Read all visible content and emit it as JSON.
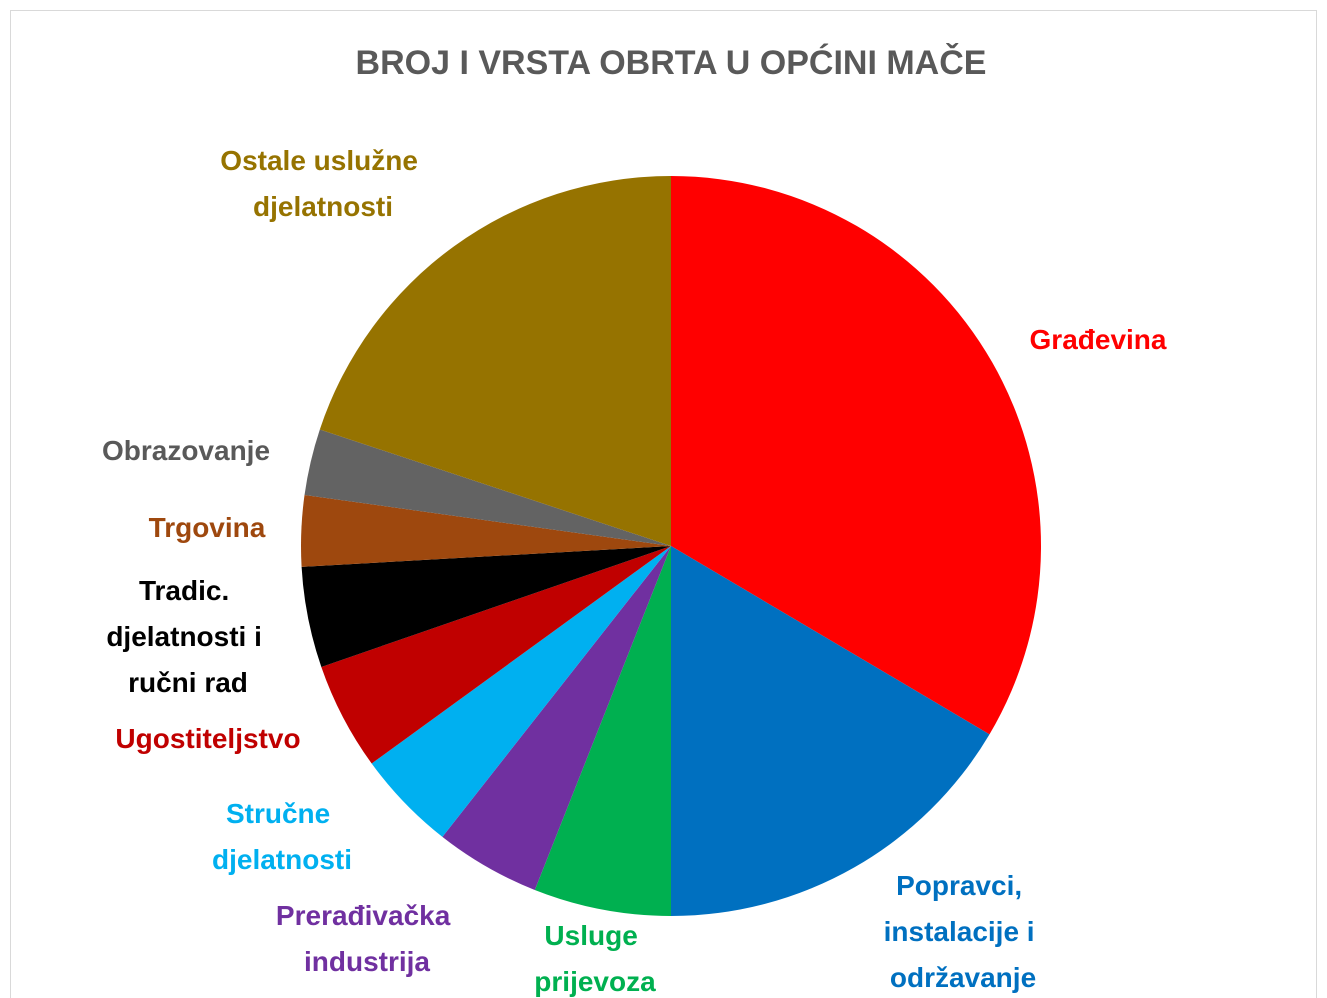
{
  "chart_data": {
    "type": "pie",
    "title": "BROJ I VRSTA OBRTA U OPĆINI MAČE",
    "categories": [
      "Građevina",
      "Popravci, instalacije i održavanje",
      "Usluge prijevoza",
      "Prerađivačka industrija",
      "Stručne djelatnosti",
      "Ugostiteljstvo",
      "Tradic. djelatnosti i ručni rad",
      "Trgovina",
      "Obrazovanje",
      "Ostale uslužne djelatnosti"
    ],
    "values": [
      33.5,
      16.5,
      6,
      4.6,
      4.4,
      4.7,
      4.4,
      3.1,
      2.9,
      19.9
    ],
    "colors": [
      "#ff0000",
      "#0070c0",
      "#00b050",
      "#7030a0",
      "#00b0f0",
      "#c00000",
      "#000000",
      "#9e480e",
      "#636363",
      "#967300"
    ],
    "label_colors": [
      "#ff0000",
      "#0070c0",
      "#00b050",
      "#7030a0",
      "#00b0f0",
      "#c00000",
      "#000000",
      "#9e480e",
      "#595959",
      "#967300"
    ]
  }
}
